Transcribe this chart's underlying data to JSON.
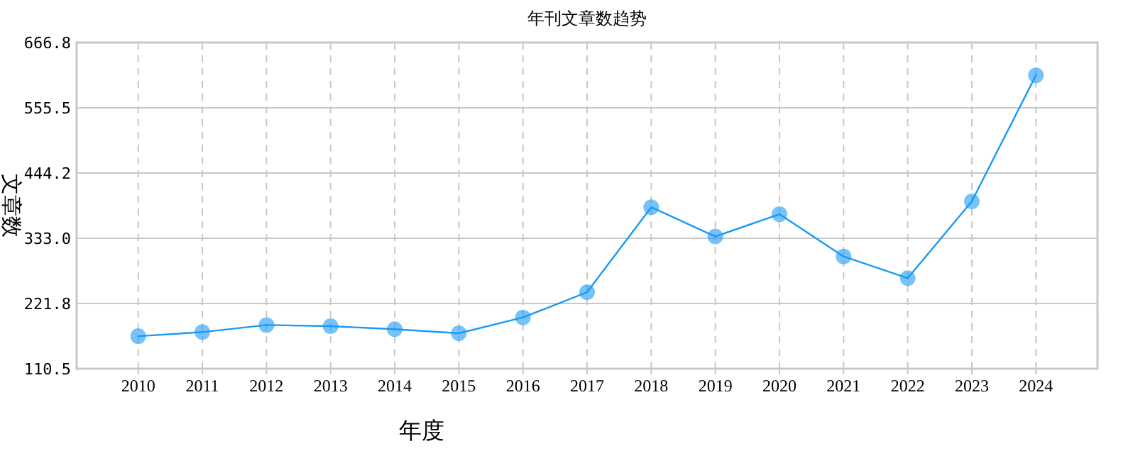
{
  "chart_data": {
    "type": "line",
    "title": "年刊文章数趋势",
    "xlabel": "年度",
    "ylabel": "文章数",
    "categories": [
      "2010",
      "2011",
      "2012",
      "2013",
      "2014",
      "2015",
      "2016",
      "2017",
      "2018",
      "2019",
      "2020",
      "2021",
      "2022",
      "2023",
      "2024"
    ],
    "series": [
      {
        "color": "#1a9af5",
        "values": [
          166,
          173,
          185,
          183,
          178,
          171,
          198,
          241,
          386,
          336,
          374,
          302,
          265,
          396,
          611
        ]
      }
    ],
    "ylim": [
      110.5,
      666.8
    ],
    "yticks": [
      110.5,
      221.8,
      {
        "value": 333.0,
        "label": "333.0"
      },
      444.2,
      555.5,
      666.8
    ],
    "grid": true,
    "marker": "circle",
    "line_style": "solid"
  }
}
